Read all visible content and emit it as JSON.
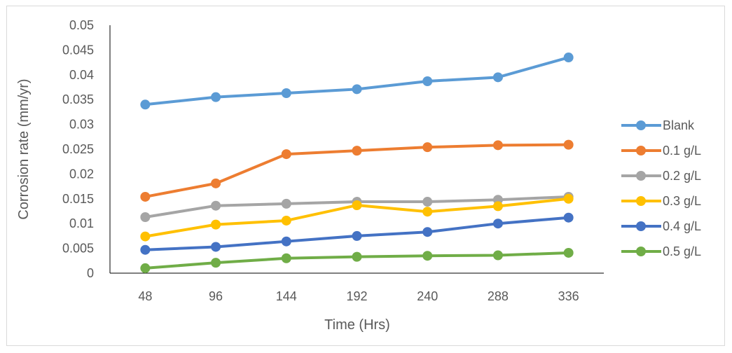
{
  "chart_data": {
    "type": "line",
    "title": "",
    "xlabel": "Time (Hrs)",
    "ylabel": "Corrosion rate (mm/yr)",
    "ylim": [
      0,
      0.05
    ],
    "y_ticks": [
      "0",
      "0.005",
      "0.01",
      "0.015",
      "0.02",
      "0.025",
      "0.03",
      "0.035",
      "0.04",
      "0.045",
      "0.05"
    ],
    "categories": [
      "48",
      "96",
      "144",
      "192",
      "240",
      "288",
      "336"
    ],
    "grid": false,
    "legend_position": "right",
    "series": [
      {
        "name": "Blank",
        "color": "#5b9bd5",
        "values": [
          0.034,
          0.0355,
          0.0363,
          0.0371,
          0.0387,
          0.0395,
          0.0435
        ]
      },
      {
        "name": "0.1 g/L",
        "color": "#ed7d31",
        "values": [
          0.0154,
          0.0181,
          0.024,
          0.0247,
          0.0254,
          0.0258,
          0.0259
        ]
      },
      {
        "name": "0.2 g/L",
        "color": "#a5a5a5",
        "values": [
          0.0113,
          0.0136,
          0.014,
          0.0144,
          0.0144,
          0.0148,
          0.0154
        ]
      },
      {
        "name": "0.3 g/L",
        "color": "#ffc000",
        "values": [
          0.0074,
          0.0098,
          0.0106,
          0.0137,
          0.0124,
          0.0135,
          0.015
        ]
      },
      {
        "name": "0.4 g/L",
        "color": "#4472c4",
        "values": [
          0.0047,
          0.0053,
          0.0064,
          0.0075,
          0.0083,
          0.01,
          0.0112
        ]
      },
      {
        "name": "0.5 g/L",
        "color": "#70ad47",
        "values": [
          0.001,
          0.0021,
          0.003,
          0.0033,
          0.0035,
          0.0036,
          0.0041
        ]
      }
    ]
  }
}
